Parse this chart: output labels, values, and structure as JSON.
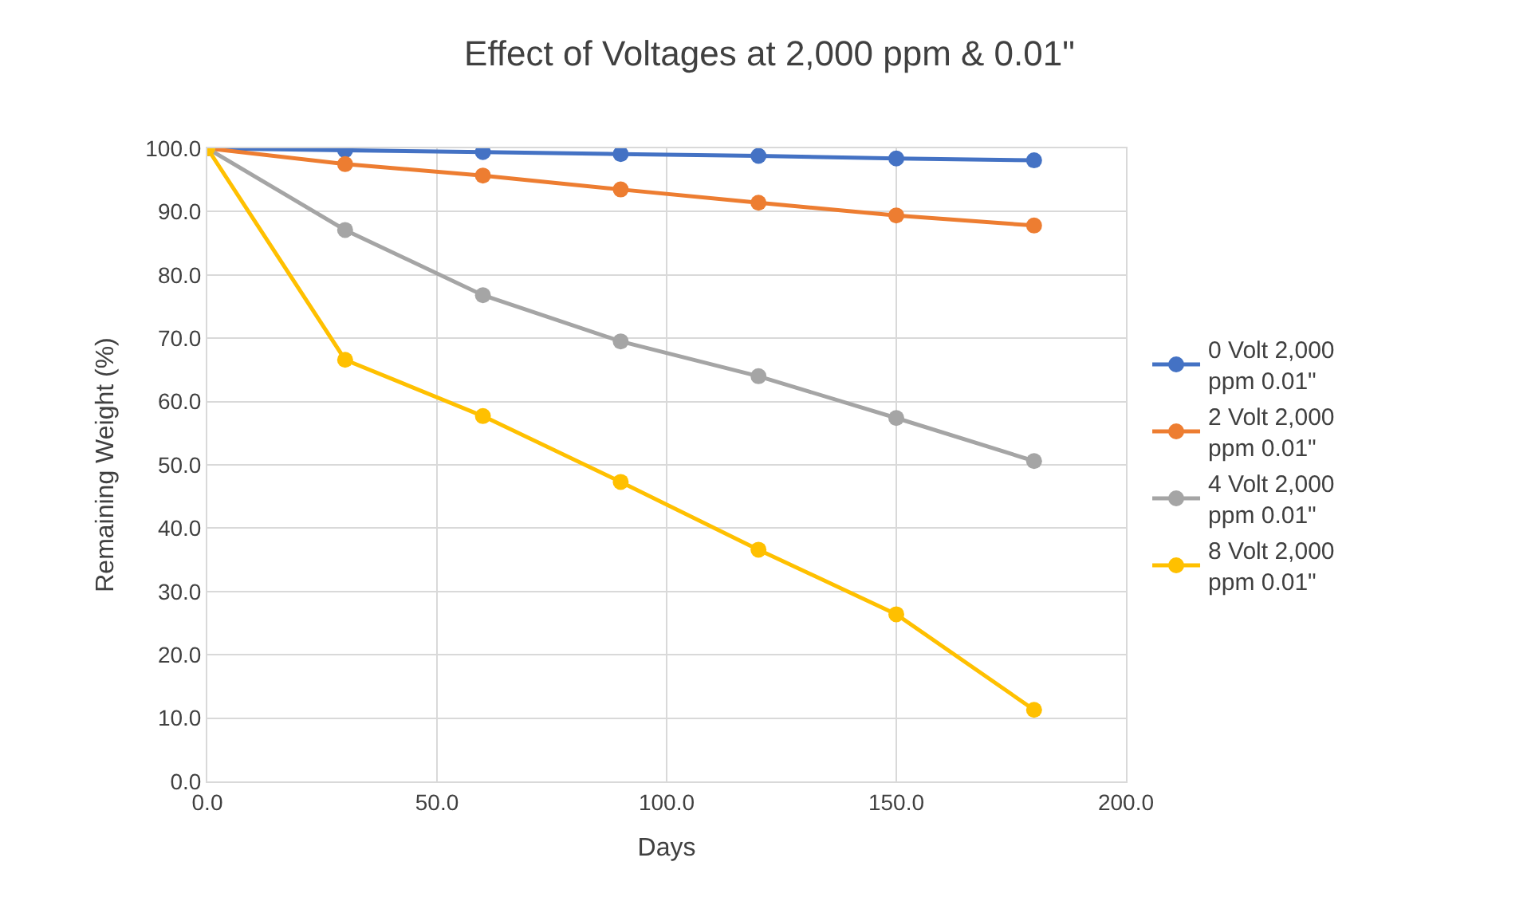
{
  "chart_data": {
    "type": "line",
    "title": "Effect of Voltages at 2,000 ppm & 0.01\"",
    "xlabel": "Days",
    "ylabel": "Remaining Weight (%)",
    "x": [
      0,
      30,
      60,
      90,
      120,
      150,
      180
    ],
    "series": [
      {
        "name": "0 Volt 2,000 ppm 0.01\"",
        "color": "#4472c4",
        "values": [
          100,
          99.7,
          99.4,
          99.1,
          98.8,
          98.4,
          98.1
        ]
      },
      {
        "name": "2 Volt 2,000 ppm 0.01\"",
        "color": "#ed7d31",
        "values": [
          100,
          97.5,
          95.7,
          93.5,
          91.4,
          89.4,
          87.8
        ]
      },
      {
        "name": "4 Volt 2,000 ppm 0.01\"",
        "color": "#a5a5a5",
        "values": [
          100,
          87.1,
          76.8,
          69.5,
          64,
          57.4,
          50.6
        ]
      },
      {
        "name": "8 Volt 2,000 ppm 0.01\"",
        "color": "#ffc000",
        "values": [
          100,
          66.6,
          57.7,
          47.3,
          36.6,
          26.4,
          11.3
        ]
      }
    ],
    "xlim": [
      0,
      200
    ],
    "xticks": [
      {
        "value": 0,
        "label": "0.0"
      },
      {
        "value": 50,
        "label": "50.0"
      },
      {
        "value": 100,
        "label": "100.0"
      },
      {
        "value": 150,
        "label": "150.0"
      },
      {
        "value": 200,
        "label": "200.0"
      }
    ],
    "ylim": [
      0,
      100
    ],
    "yticks": [
      {
        "value": 0,
        "label": "0.0"
      },
      {
        "value": 10,
        "label": "10.0"
      },
      {
        "value": 20,
        "label": "20.0"
      },
      {
        "value": 30,
        "label": "30.0"
      },
      {
        "value": 40,
        "label": "40.0"
      },
      {
        "value": 50,
        "label": "50.0"
      },
      {
        "value": 60,
        "label": "60.0"
      },
      {
        "value": 70,
        "label": "70.0"
      },
      {
        "value": 80,
        "label": "80.0"
      },
      {
        "value": 90,
        "label": "90.0"
      },
      {
        "value": 100,
        "label": "100.0"
      }
    ],
    "grid": true,
    "legend": "right",
    "marker": "circle",
    "line_style": "solid"
  }
}
